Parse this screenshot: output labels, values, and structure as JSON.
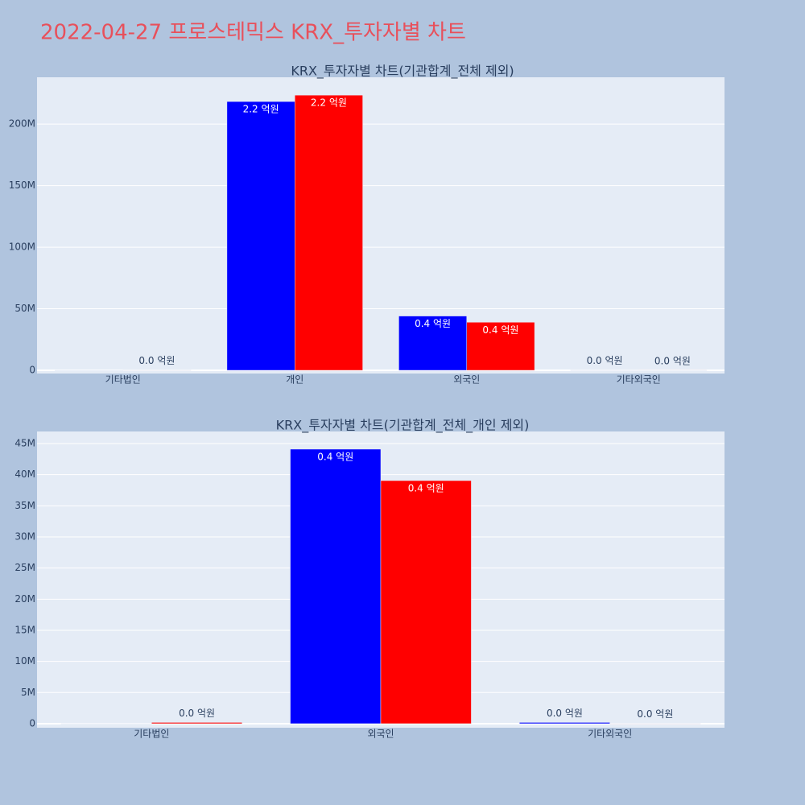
{
  "title": "2022-04-27 프로스테믹스 KRX_투자자별 차트",
  "chart_data": [
    {
      "type": "bar",
      "title": "KRX_투자자별 차트(기관합계_전체 제외)",
      "categories": [
        "기타법인",
        "개인",
        "외국인",
        "기타외국인"
      ],
      "series": [
        {
          "color": "#0000ff",
          "values": [
            0,
            218300000,
            44100000,
            200000
          ],
          "value_labels": [
            null,
            "2.2 억원",
            "0.4 억원",
            "0.0 억원"
          ]
        },
        {
          "color": "#ff0000",
          "values": [
            200000,
            223500000,
            39050000,
            50000
          ],
          "value_labels": [
            "0.0 억원",
            "2.2 억원",
            "0.4 억원",
            "0.0 억원"
          ]
        }
      ],
      "ylim": [
        -2600000,
        238000000
      ],
      "yticks": [
        0,
        {
          "value": 50000000,
          "label": "50M"
        },
        {
          "value": 100000000,
          "label": "100M"
        },
        {
          "value": 150000000,
          "label": "150M"
        },
        {
          "value": 200000000,
          "label": "200M"
        }
      ],
      "grid": true
    },
    {
      "type": "bar",
      "title": "KRX_투자자별 차트(기관합계_전체_개인 제외)",
      "categories": [
        "기타법인",
        "외국인",
        "기타외국인"
      ],
      "series": [
        {
          "color": "#0000ff",
          "values": [
            0,
            44100000,
            200000
          ],
          "value_labels": [
            null,
            "0.4 억원",
            "0.0 억원"
          ]
        },
        {
          "color": "#ff0000",
          "values": [
            200000,
            39050000,
            50000
          ],
          "value_labels": [
            "0.0 억원",
            "0.4 억원",
            "0.0 억원"
          ]
        }
      ],
      "ylim": [
        -650000,
        46940000
      ],
      "yticks": [
        0,
        {
          "value": 5000000,
          "label": "5M"
        },
        {
          "value": 10000000,
          "label": "10M"
        },
        {
          "value": 15000000,
          "label": "15M"
        },
        {
          "value": 20000000,
          "label": "20M"
        },
        {
          "value": 25000000,
          "label": "25M"
        },
        {
          "value": 30000000,
          "label": "30M"
        },
        {
          "value": 35000000,
          "label": "35M"
        },
        {
          "value": 40000000,
          "label": "40M"
        },
        {
          "value": 45000000,
          "label": "45M"
        }
      ],
      "grid": true
    }
  ]
}
